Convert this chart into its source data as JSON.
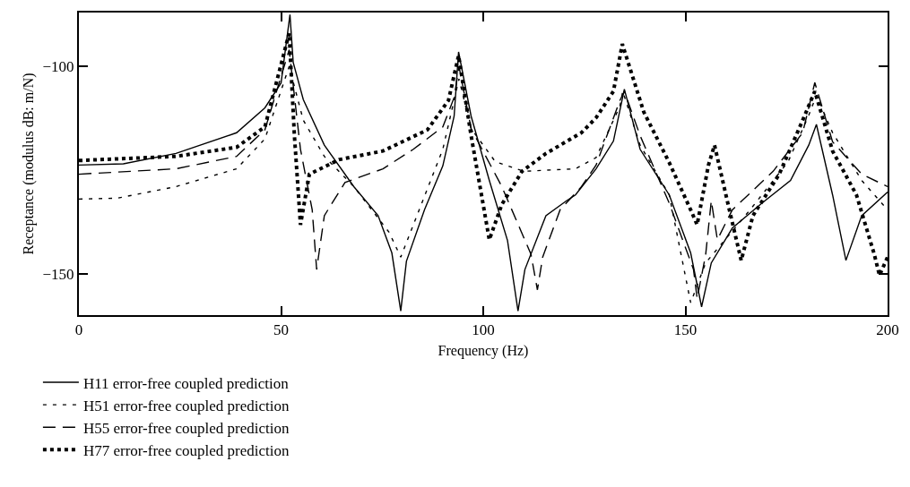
{
  "chart_data": {
    "type": "line",
    "xlabel": "Frequency (Hz)",
    "ylabel": "Receptance (modulus dB: m/N)",
    "xlim": [
      0,
      200
    ],
    "ylim": [
      -160,
      -87
    ],
    "xticks": [
      0,
      50,
      100,
      150,
      200
    ],
    "yticks": [
      -100,
      -150
    ],
    "legend": "bottom left",
    "marker": "none",
    "series": [
      {
        "name": "H11 error-free coupled prediction",
        "color": "#000000",
        "line_style": "solid",
        "x": [
          0,
          11,
          24,
          39,
          46,
          50,
          52.2,
          53,
          55.5,
          60.7,
          68,
          74,
          77.4,
          79.6,
          81,
          85.5,
          90,
          92.8,
          93.9,
          97,
          101.5,
          106,
          108.6,
          110.3,
          115.5,
          120.6,
          122.8,
          127.9,
          132.2,
          134.9,
          138.8,
          146,
          151.3,
          154,
          156.4,
          161.6,
          168.9,
          176,
          180.5,
          182.4,
          186.4,
          189.7,
          193.6,
          200
        ],
        "values": [
          -123.8,
          -123.5,
          -121,
          -116,
          -110,
          -104,
          -87.5,
          -99,
          -108,
          -119,
          -129,
          -136,
          -145,
          -159,
          -147,
          -134.5,
          -124,
          -112,
          -96.5,
          -112,
          -127.5,
          -142,
          -159,
          -149,
          -136,
          -132.4,
          -131,
          -124.7,
          -118,
          -105.5,
          -120,
          -131,
          -145,
          -158,
          -147.4,
          -139,
          -133,
          -127.5,
          -119,
          -114,
          -131,
          -146.8,
          -136,
          -130.3
        ]
      },
      {
        "name": "H51 error-free coupled prediction",
        "color": "#000000",
        "line_style": "dashed",
        "x": [
          0,
          9.4,
          24,
          39,
          46,
          52,
          55.5,
          60.7,
          68,
          76.7,
          79.6,
          82,
          86,
          90,
          94,
          97,
          103,
          110,
          122.8,
          127.9,
          133.8,
          134.5,
          138.8,
          146,
          151.3,
          155,
          166,
          175.4,
          180.5,
          182.4,
          186.4,
          193.6,
          200
        ],
        "values": [
          -132,
          -131.8,
          -129,
          -124.7,
          -117.5,
          -100,
          -113,
          -121.7,
          -129,
          -140,
          -146,
          -140,
          -130,
          -120,
          -103,
          -115,
          -123,
          -125.3,
          -124.7,
          -122,
          -109.6,
          -106,
          -119,
          -131,
          -157,
          -147.4,
          -134.6,
          -123,
          -111.8,
          -107,
          -116,
          -127.5,
          -134.6
        ]
      },
      {
        "name": "H55 error-free coupled prediction",
        "color": "#000000",
        "line_style": "dashed",
        "x": [
          0,
          24,
          39,
          46,
          52,
          54.8,
          57.7,
          58.8,
          60.7,
          65.8,
          75.2,
          82.7,
          90,
          92.8,
          94,
          97,
          104.6,
          111.8,
          113.4,
          114.7,
          119,
          124.3,
          127.9,
          133.8,
          134.9,
          138.8,
          146,
          152,
          152.9,
          155,
          156.4,
          157.9,
          161.6,
          171.7,
          179,
          182,
          186.4,
          193.6,
          200
        ],
        "values": [
          -126,
          -124.7,
          -121.7,
          -115.3,
          -96,
          -120,
          -134.6,
          -149,
          -136,
          -128,
          -124.7,
          -120,
          -114.6,
          -107.5,
          -100,
          -115,
          -129,
          -145.3,
          -153.9,
          -146,
          -134.6,
          -129,
          -123.8,
          -108.2,
          -106,
          -116.7,
          -133,
          -149,
          -156,
          -145.5,
          -132.4,
          -141.8,
          -134.6,
          -125.3,
          -116,
          -103.9,
          -118.2,
          -126,
          -129
        ]
      },
      {
        "name": "H77 error-free coupled prediction",
        "color": "#000000",
        "line_style": "dotted",
        "x": [
          0,
          24,
          39,
          46,
          52,
          53.3,
          54.8,
          57,
          64.3,
          75.2,
          86.2,
          91.4,
          93.9,
          97,
          101.5,
          104.6,
          109.6,
          115.5,
          124.3,
          127.9,
          132.2,
          134.4,
          139.7,
          146,
          151.3,
          152.9,
          155.7,
          157.2,
          160.7,
          163.8,
          166.7,
          173.2,
          179,
          182,
          186.4,
          192.3,
          196.7,
          198,
          200
        ],
        "values": [
          -122.7,
          -121.7,
          -119.5,
          -114.6,
          -92,
          -116.7,
          -138.2,
          -126,
          -122.5,
          -120.4,
          -115.3,
          -108.2,
          -97.4,
          -116.7,
          -141.8,
          -133.3,
          -125.3,
          -121,
          -116,
          -112.4,
          -106,
          -94.6,
          -111,
          -123.2,
          -134.6,
          -138.2,
          -123.8,
          -119,
          -133.9,
          -146.8,
          -136,
          -126,
          -113,
          -106,
          -120.4,
          -131,
          -145.3,
          -150.4,
          -146
        ]
      }
    ]
  }
}
